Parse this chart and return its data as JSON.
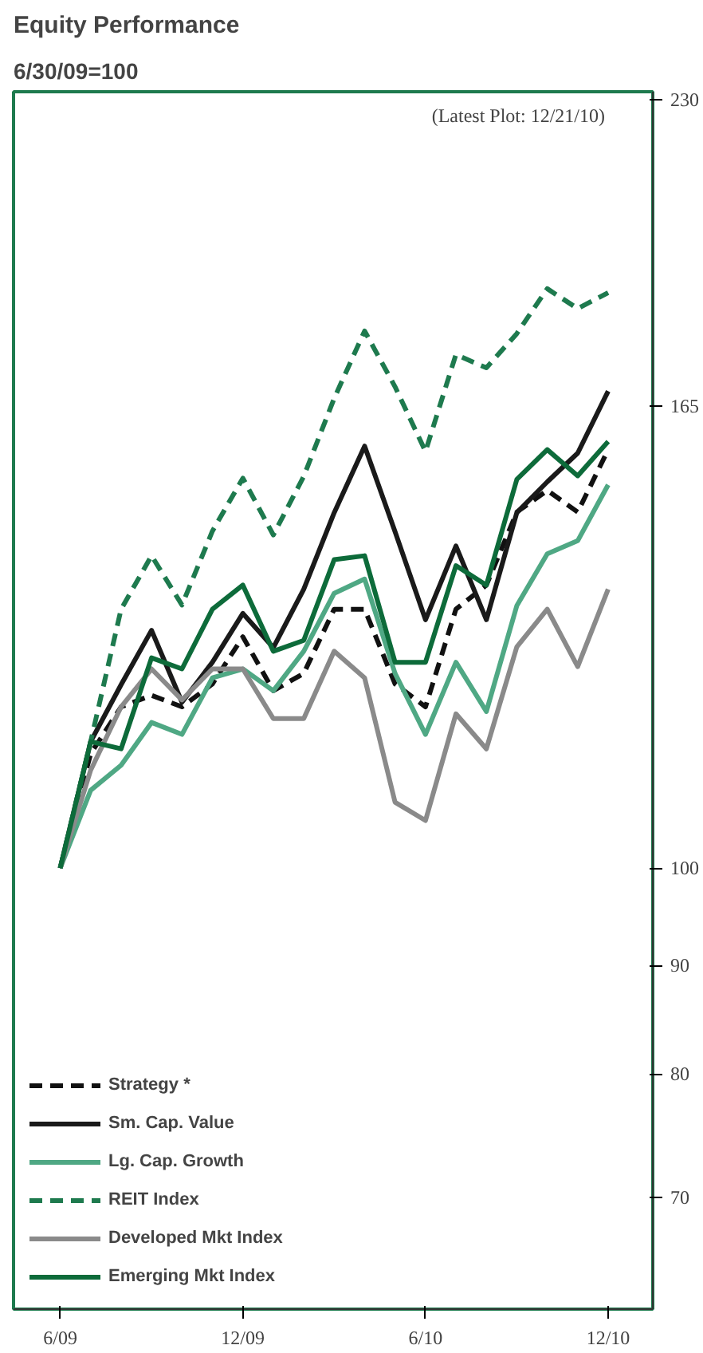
{
  "chart_data": {
    "type": "line",
    "title": "Equity Performance",
    "subtitle": "6/30/09=100",
    "annotations": [
      "(Latest Plot: 12/21/10)"
    ],
    "x": [
      "2009-06",
      "2009-07",
      "2009-08",
      "2009-09",
      "2009-10",
      "2009-11",
      "2009-12",
      "2010-01",
      "2010-02",
      "2010-03",
      "2010-04",
      "2010-05",
      "2010-06",
      "2010-07",
      "2010-08",
      "2010-09",
      "2010-10",
      "2010-11",
      "2010-12"
    ],
    "series": [
      {
        "name": "Strategy *",
        "color": "#111111",
        "line_style": "dashed",
        "values": [
          100,
          113.2,
          119.1,
          120.6,
          119.1,
          122.1,
          128.5,
          121.2,
          123.5,
          132.4,
          132.4,
          122.1,
          119.1,
          132.4,
          135.9,
          147.1,
          150.6,
          147.1,
          157.4
        ]
      },
      {
        "name": "Sm. Cap. Value",
        "color": "#1a1a1a",
        "line_style": "solid",
        "values": [
          100,
          114.7,
          122,
          129.4,
          119.7,
          125,
          131.8,
          127,
          135.3,
          147,
          158,
          144,
          130.9,
          141.8,
          130.9,
          147,
          152,
          156.8,
          167.7
        ]
      },
      {
        "name": "Lg. Cap. Growth",
        "color": "#4fa884",
        "line_style": "solid",
        "values": [
          100,
          108.8,
          111.8,
          117.1,
          115.6,
          122.9,
          124.1,
          121.2,
          126.5,
          134.7,
          136.8,
          123.5,
          115.6,
          125,
          118.5,
          132.9,
          140.6,
          142.6,
          151.5
        ]
      },
      {
        "name": "REIT Index",
        "color": "#1e7a4e",
        "line_style": "dashed",
        "values": [
          100,
          114.7,
          132.4,
          140.3,
          133,
          144.1,
          152.6,
          143.5,
          152.9,
          166.4,
          179,
          168.5,
          157.1,
          174.5,
          172,
          178.5,
          187.4,
          183.4,
          186.6
        ]
      },
      {
        "name": "Developed Mkt Index",
        "color": "#8a8a8a",
        "line_style": "solid",
        "values": [
          100,
          111.2,
          119.1,
          124.1,
          120,
          124.1,
          124.1,
          117.6,
          117.6,
          126.5,
          122.9,
          107.4,
          105.3,
          118.2,
          113.8,
          127.1,
          132.4,
          124.4,
          135.3
        ]
      },
      {
        "name": "Emerging Mkt Index",
        "color": "#0d6b3a",
        "line_style": "solid",
        "values": [
          100,
          114.7,
          113.8,
          125.6,
          124.1,
          132.4,
          135.9,
          126.5,
          128,
          139.7,
          140.3,
          125,
          125,
          138.8,
          135.9,
          152.4,
          157.4,
          153,
          158.8
        ]
      }
    ],
    "log": "y",
    "xlim": [
      "2009-04-15",
      "2011-01-15"
    ],
    "ylim": [
      62,
      232
    ],
    "xticks": [
      {
        "value": "2009-06",
        "label": "6/09"
      },
      {
        "value": "2009-12",
        "label": "12/09"
      },
      {
        "value": "2010-06",
        "label": "6/10"
      },
      {
        "value": "2010-12",
        "label": "12/10"
      }
    ],
    "yticks": [
      70,
      80,
      90,
      100,
      165,
      230
    ],
    "grid": false,
    "legend": "bottom left",
    "marker": "none"
  }
}
